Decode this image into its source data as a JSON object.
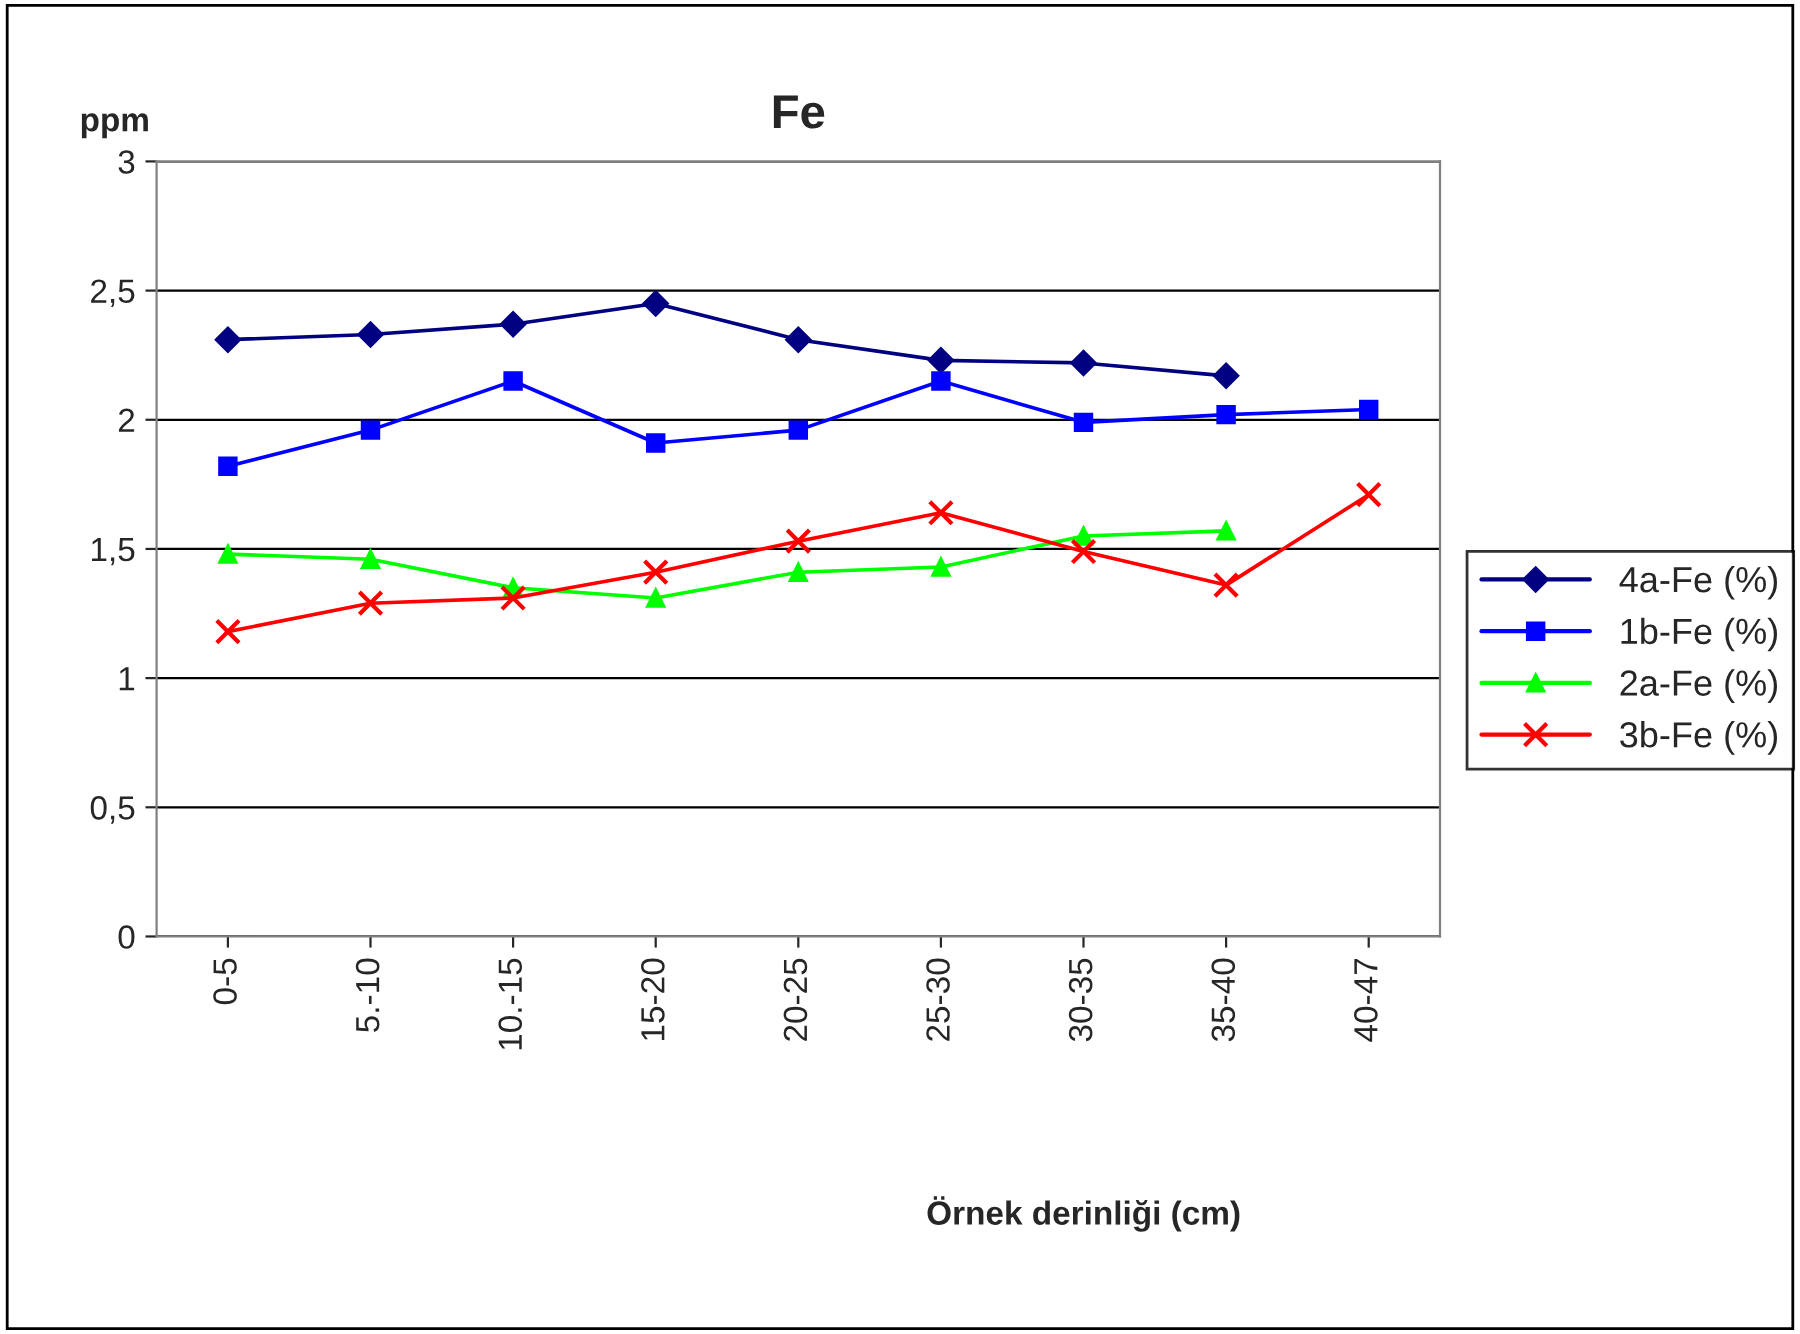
{
  "chart_data": {
    "type": "line",
    "title": "Fe",
    "ylabel": "ppm",
    "xlabel": "Örnek derinliği (cm)",
    "categories": [
      "0-5",
      "5.-10",
      "10.-15",
      "15-20",
      "20-25",
      "25-30",
      "30-35",
      "35-40",
      "40-47"
    ],
    "series": [
      {
        "name": "4a-Fe (%)",
        "color": "#000080",
        "marker": "diamond",
        "values": [
          2.31,
          2.33,
          2.37,
          2.45,
          2.31,
          2.23,
          2.22,
          2.17,
          null
        ]
      },
      {
        "name": "1b-Fe (%)",
        "color": "#0000ff",
        "marker": "square",
        "values": [
          1.82,
          1.96,
          2.15,
          1.91,
          1.96,
          2.15,
          1.99,
          2.02,
          2.04
        ]
      },
      {
        "name": "2a-Fe (%)",
        "color": "#00ff00",
        "marker": "triangle",
        "values": [
          1.48,
          1.46,
          1.35,
          1.31,
          1.41,
          1.43,
          1.55,
          1.57,
          null
        ]
      },
      {
        "name": "3b-Fe (%)",
        "color": "#ff0000",
        "marker": "cross",
        "values": [
          1.18,
          1.29,
          1.31,
          1.41,
          1.53,
          1.64,
          1.49,
          1.36,
          1.71
        ]
      }
    ],
    "ylim": [
      0,
      3
    ],
    "yticks": [
      0,
      {
        "value": 0.5,
        "label": "0,5"
      },
      1,
      {
        "value": 1.5,
        "label": "1,5"
      },
      2,
      {
        "value": 2.5,
        "label": "2,5"
      },
      3
    ],
    "grid": "y",
    "legend": "right",
    "line_style": "solid"
  }
}
